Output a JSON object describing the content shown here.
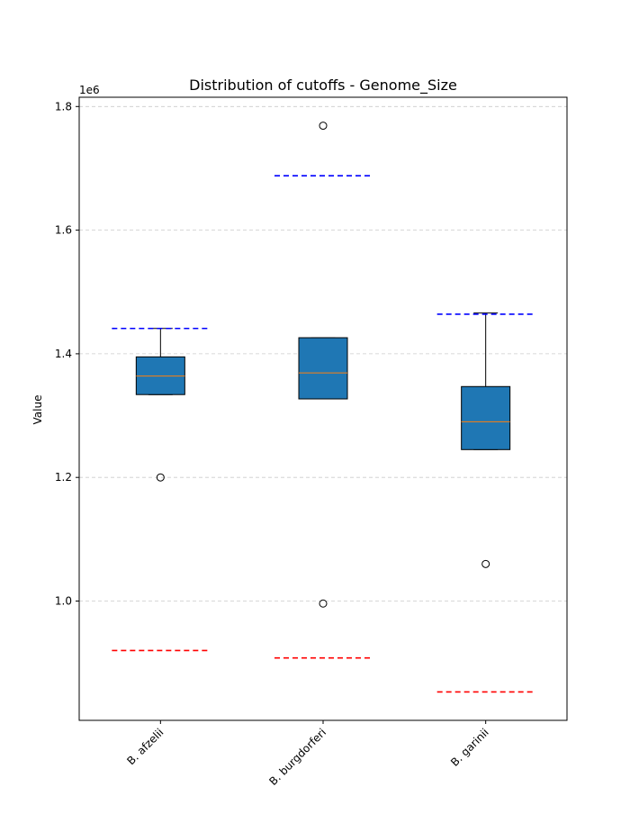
{
  "chart_data": {
    "type": "box",
    "title": "Distribution of cutoffs - Genome_Size",
    "xlabel": "",
    "ylabel": "Value",
    "y_offset_label": "1e6",
    "y_scale_factor": 1000000,
    "ylim": [
      807000,
      1815000
    ],
    "yticks": [
      1000000,
      1200000,
      1400000,
      1600000,
      1800000
    ],
    "ytick_labels": [
      "1.0",
      "1.2",
      "1.4",
      "1.6",
      "1.8"
    ],
    "grid": "horizontal dashed",
    "categories": [
      "B. afzelii",
      "B. burgdorferi",
      "B. garinii"
    ],
    "boxes": [
      {
        "q1": 1334000,
        "median": 1364000,
        "q3": 1395000,
        "whisker_low": 1334000,
        "whisker_high": 1441000,
        "outliers": [
          1200000
        ],
        "upper_cutoff": 1441000,
        "lower_cutoff": 920000
      },
      {
        "q1": 1327000,
        "median": 1369000,
        "q3": 1426000,
        "whisker_low": 1327000,
        "whisker_high": 1426000,
        "outliers": [
          1769000,
          996000
        ],
        "upper_cutoff": 1688000,
        "lower_cutoff": 908000
      },
      {
        "q1": 1245000,
        "median": 1290000,
        "q3": 1347000,
        "whisker_low": 1245000,
        "whisker_high": 1466000,
        "outliers": [
          1060000
        ],
        "upper_cutoff": 1464000,
        "lower_cutoff": 853000
      }
    ],
    "colors": {
      "box_fill": "#1f77b4",
      "median": "#ff7f0e",
      "upper_cutoff": "#0000ff",
      "lower_cutoff": "#ff0000",
      "grid": "#cccccc"
    }
  }
}
